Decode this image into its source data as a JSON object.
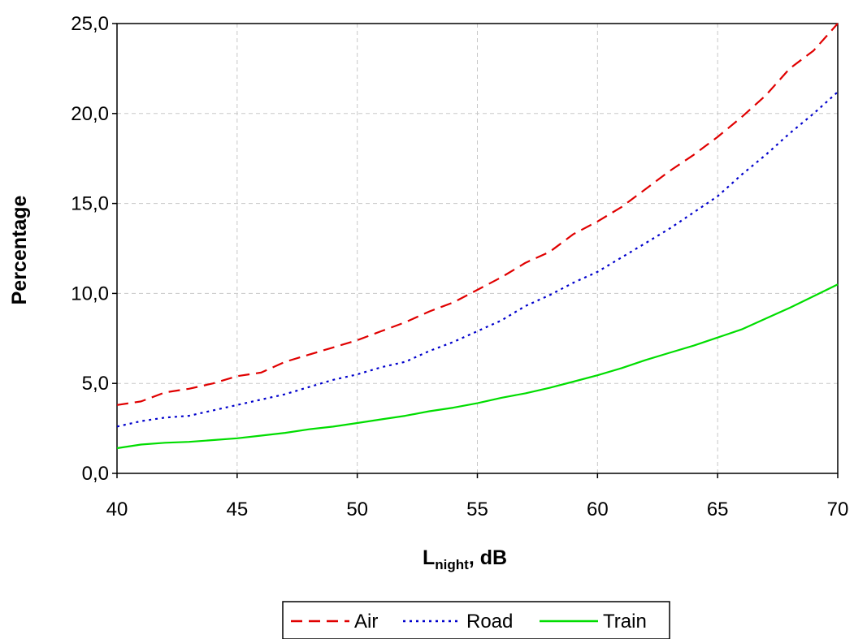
{
  "chart_data": {
    "type": "line",
    "title": "",
    "xlabel": {
      "main": "L",
      "sub": "night",
      "suffix": ", dB"
    },
    "ylabel": "Percentage",
    "xlim": [
      40,
      70
    ],
    "ylim": [
      0,
      25
    ],
    "x_ticks": [
      "40",
      "45",
      "50",
      "55",
      "60",
      "65",
      "70"
    ],
    "y_ticks": [
      "0,0",
      "5,0",
      "10,0",
      "15,0",
      "20,0",
      "25,0"
    ],
    "grid": true,
    "legend_position": "bottom",
    "x": [
      40,
      41,
      42,
      43,
      44,
      45,
      46,
      47,
      48,
      49,
      50,
      51,
      52,
      53,
      54,
      55,
      56,
      57,
      58,
      59,
      60,
      61,
      62,
      63,
      64,
      65,
      66,
      67,
      68,
      69,
      70
    ],
    "series": [
      {
        "name": "Air",
        "color": "#e00000",
        "style": "dashed",
        "values": [
          3.8,
          4.0,
          4.5,
          4.7,
          5.0,
          5.4,
          5.6,
          6.2,
          6.6,
          7.0,
          7.4,
          7.9,
          8.4,
          9.0,
          9.5,
          10.2,
          10.9,
          11.7,
          12.3,
          13.3,
          14.0,
          14.8,
          15.8,
          16.8,
          17.7,
          18.7,
          19.8,
          21.0,
          22.5,
          23.5,
          25.0
        ]
      },
      {
        "name": "Road",
        "color": "#0000cc",
        "style": "dotted",
        "values": [
          2.6,
          2.9,
          3.1,
          3.2,
          3.5,
          3.8,
          4.1,
          4.4,
          4.8,
          5.2,
          5.5,
          5.9,
          6.2,
          6.8,
          7.3,
          7.9,
          8.5,
          9.3,
          9.9,
          10.6,
          11.2,
          12.0,
          12.8,
          13.6,
          14.5,
          15.4,
          16.6,
          17.7,
          18.9,
          20.0,
          21.2
        ]
      },
      {
        "name": "Train",
        "color": "#00dd00",
        "style": "solid",
        "values": [
          1.4,
          1.6,
          1.7,
          1.75,
          1.85,
          1.95,
          2.1,
          2.25,
          2.45,
          2.6,
          2.8,
          3.0,
          3.2,
          3.45,
          3.65,
          3.9,
          4.2,
          4.45,
          4.75,
          5.1,
          5.45,
          5.85,
          6.3,
          6.7,
          7.1,
          7.55,
          8.0,
          8.6,
          9.2,
          9.85,
          10.5
        ]
      }
    ]
  }
}
